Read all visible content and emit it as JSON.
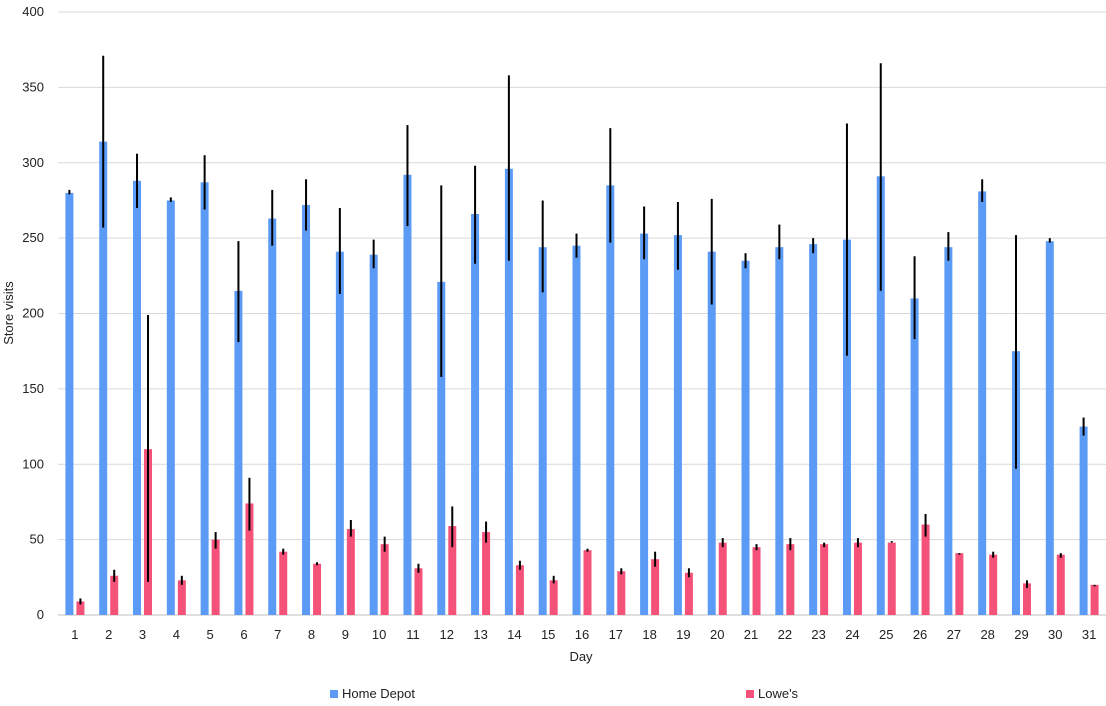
{
  "chart_data": {
    "type": "bar",
    "xlabel": "Day",
    "ylabel": "Store visits",
    "ylim": [
      0,
      400
    ],
    "yticks": [
      0,
      50,
      100,
      150,
      200,
      250,
      300,
      350,
      400
    ],
    "grid": true,
    "legend_position": "bottom",
    "categories": [
      "1",
      "2",
      "3",
      "4",
      "5",
      "6",
      "7",
      "8",
      "9",
      "10",
      "11",
      "12",
      "13",
      "14",
      "15",
      "16",
      "17",
      "18",
      "19",
      "20",
      "21",
      "22",
      "23",
      "24",
      "25",
      "26",
      "27",
      "28",
      "29",
      "30",
      "31"
    ],
    "series": [
      {
        "name": "Home Depot",
        "color": "#5b9bf5",
        "values": [
          280,
          314,
          288,
          275,
          287,
          215,
          263,
          272,
          241,
          239,
          292,
          221,
          266,
          296,
          244,
          245,
          285,
          253,
          252,
          241,
          235,
          244,
          246,
          249,
          291,
          210,
          244,
          281,
          175,
          248,
          125
        ],
        "error_low": [
          279,
          257,
          270,
          274,
          269,
          181,
          245,
          255,
          213,
          230,
          258,
          158,
          233,
          235,
          214,
          237,
          247,
          236,
          229,
          206,
          230,
          236,
          240,
          172,
          215,
          183,
          235,
          274,
          97,
          247,
          119
        ],
        "error_high": [
          282,
          371,
          306,
          277,
          305,
          248,
          282,
          289,
          270,
          249,
          325,
          285,
          298,
          358,
          275,
          253,
          323,
          271,
          274,
          276,
          240,
          259,
          250,
          326,
          366,
          238,
          254,
          289,
          252,
          250,
          131
        ]
      },
      {
        "name": "Lowe's",
        "color": "#f5527a",
        "values": [
          9,
          26,
          110,
          23,
          50,
          74,
          42,
          34,
          57,
          47,
          31,
          59,
          55,
          33,
          23,
          43,
          29,
          37,
          28,
          48,
          45,
          47,
          47,
          48,
          48,
          60,
          41,
          40,
          21,
          40,
          20
        ],
        "error_low": [
          7,
          22,
          22,
          20,
          44,
          56,
          40,
          33,
          52,
          42,
          28,
          45,
          48,
          30,
          21,
          42,
          27,
          32,
          25,
          45,
          43,
          43,
          45,
          45,
          48,
          52,
          40,
          38,
          18,
          38,
          19
        ],
        "error_high": [
          11,
          30,
          199,
          26,
          55,
          91,
          44,
          35,
          63,
          52,
          34,
          72,
          62,
          36,
          26,
          44,
          31,
          42,
          31,
          51,
          47,
          51,
          48,
          51,
          49,
          67,
          41,
          42,
          23,
          41,
          20
        ]
      }
    ]
  }
}
